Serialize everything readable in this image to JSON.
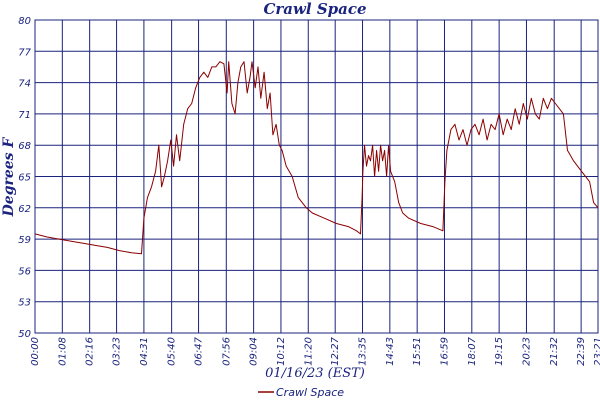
{
  "chart_data": {
    "type": "line",
    "title": "Crawl Space",
    "xlabel": "01/16/23 (EST)",
    "ylabel": "Degrees F",
    "y_ticks": [
      "80",
      "77",
      "74",
      "71",
      "68",
      "65",
      "62",
      "59",
      "56",
      "53",
      "50"
    ],
    "ylim": [
      50,
      80
    ],
    "x_ticks": [
      "00:00",
      "01:08",
      "02:16",
      "03:23",
      "04:31",
      "05:40",
      "06:47",
      "07:56",
      "09:04",
      "10:12",
      "11:20",
      "12:27",
      "13:35",
      "14:43",
      "15:51",
      "16:59",
      "18:07",
      "19:15",
      "20:23",
      "21:32",
      "22:39",
      "23:21"
    ],
    "grid": true,
    "legend_position": "bottom-center",
    "colors": {
      "line": "#8b0000",
      "grid": "#1a237e",
      "text": "#1a237e"
    },
    "series": [
      {
        "name": "Crawl Space",
        "x": [
          "00:00",
          "00:30",
          "01:00",
          "01:30",
          "02:00",
          "02:30",
          "03:00",
          "03:30",
          "04:00",
          "04:25",
          "04:31",
          "04:40",
          "04:50",
          "05:00",
          "05:08",
          "05:15",
          "05:22",
          "05:30",
          "05:38",
          "05:45",
          "05:52",
          "06:00",
          "06:10",
          "06:20",
          "06:30",
          "06:40",
          "06:50",
          "07:00",
          "07:10",
          "07:20",
          "07:30",
          "07:40",
          "07:50",
          "07:58",
          "08:02",
          "08:10",
          "08:18",
          "08:25",
          "08:32",
          "08:40",
          "08:48",
          "08:55",
          "09:00",
          "09:08",
          "09:15",
          "09:22",
          "09:30",
          "09:38",
          "09:45",
          "09:52",
          "10:00",
          "10:08",
          "10:15",
          "10:25",
          "10:40",
          "10:55",
          "11:05",
          "11:15",
          "11:30",
          "12:00",
          "12:30",
          "13:00",
          "13:20",
          "13:30",
          "13:34",
          "13:36",
          "13:40",
          "13:45",
          "13:50",
          "13:55",
          "14:00",
          "14:05",
          "14:10",
          "14:15",
          "14:20",
          "14:25",
          "14:30",
          "14:35",
          "14:40",
          "14:45",
          "14:55",
          "15:05",
          "15:15",
          "15:30",
          "16:00",
          "16:30",
          "16:55",
          "17:00",
          "17:05",
          "17:15",
          "17:25",
          "17:35",
          "17:45",
          "17:55",
          "18:05",
          "18:15",
          "18:25",
          "18:35",
          "18:45",
          "18:55",
          "19:05",
          "19:15",
          "19:25",
          "19:35",
          "19:45",
          "19:55",
          "20:05",
          "20:15",
          "20:25",
          "20:35",
          "20:45",
          "20:55",
          "21:05",
          "21:15",
          "21:25",
          "21:35",
          "21:45",
          "21:55",
          "22:05",
          "22:20",
          "22:40",
          "23:00",
          "23:10",
          "23:21"
        ],
        "values": [
          59.5,
          59.2,
          59.0,
          58.8,
          58.6,
          58.4,
          58.2,
          57.9,
          57.7,
          57.6,
          61.0,
          63.0,
          64.0,
          65.5,
          68.0,
          64.0,
          65.0,
          66.5,
          68.5,
          66.0,
          69.0,
          66.5,
          70.0,
          71.5,
          72.0,
          73.5,
          74.5,
          75.0,
          74.5,
          75.5,
          75.5,
          76.0,
          75.8,
          73.0,
          76.0,
          72.0,
          71.0,
          74.0,
          75.5,
          76.0,
          73.0,
          74.5,
          76.0,
          73.5,
          75.5,
          72.5,
          75.0,
          71.5,
          73.0,
          69.0,
          70.0,
          68.0,
          67.5,
          66.0,
          65.0,
          63.0,
          62.5,
          62.0,
          61.5,
          61.0,
          60.5,
          60.2,
          59.8,
          59.5,
          63.0,
          65.5,
          68.0,
          66.0,
          67.0,
          66.5,
          68.0,
          65.0,
          67.5,
          65.5,
          68.0,
          66.5,
          67.5,
          65.0,
          68.0,
          65.5,
          64.5,
          62.5,
          61.5,
          61.0,
          60.5,
          60.2,
          59.8,
          64.5,
          67.5,
          69.5,
          70.0,
          68.5,
          69.5,
          68.0,
          69.5,
          70.0,
          69.0,
          70.5,
          68.5,
          70.0,
          69.5,
          71.0,
          69.0,
          70.5,
          69.5,
          71.5,
          70.0,
          72.0,
          70.5,
          72.5,
          71.0,
          70.5,
          72.5,
          71.5,
          72.5,
          72.0,
          71.5,
          71.0,
          67.5,
          66.5,
          65.5,
          64.5,
          62.5,
          62.0
        ]
      }
    ]
  }
}
